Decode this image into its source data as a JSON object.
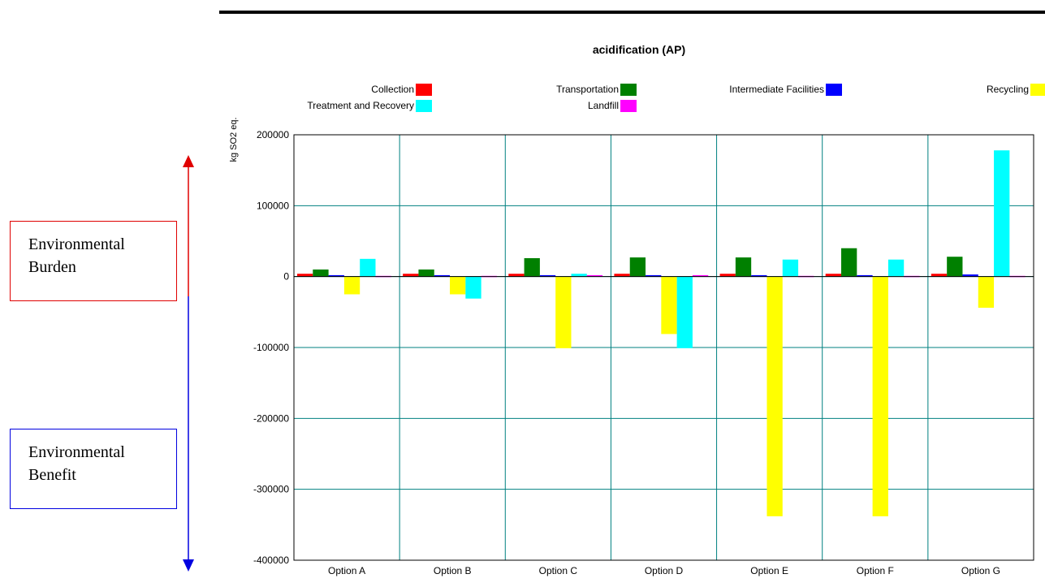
{
  "chart_data": {
    "type": "bar",
    "title": "acidification (AP)",
    "ylabel": "kg SO2 eq.",
    "xlabel": "",
    "ylim": [
      -400000,
      200000
    ],
    "yticks": [
      200000,
      100000,
      0,
      -100000,
      -200000,
      -300000,
      -400000
    ],
    "grid": true,
    "legend_position": "top",
    "categories": [
      "Option A",
      "Option B",
      "Option C",
      "Option D",
      "Option E",
      "Option F",
      "Option G"
    ],
    "series": [
      {
        "name": "Collection",
        "color": "#ff0000",
        "values": [
          4000,
          4000,
          4000,
          4000,
          4000,
          4000,
          4000
        ]
      },
      {
        "name": "Transportation",
        "color": "#008000",
        "values": [
          10000,
          10000,
          26000,
          27000,
          27000,
          40000,
          28000
        ]
      },
      {
        "name": "Intermediate Facilities",
        "color": "#0000ff",
        "values": [
          2000,
          2000,
          2000,
          2000,
          2000,
          2000,
          3000
        ]
      },
      {
        "name": "Recycling",
        "color": "#ffff00",
        "values": [
          -25000,
          -25000,
          -101000,
          -81000,
          -338000,
          -338000,
          -44000
        ]
      },
      {
        "name": "Treatment and Recovery",
        "color": "#00ffff",
        "values": [
          25000,
          -31000,
          4000,
          -101000,
          24000,
          24000,
          178000
        ]
      },
      {
        "name": "Landfill",
        "color": "#ff00ff",
        "values": [
          1000,
          1000,
          2000,
          2000,
          1000,
          1000,
          1000
        ]
      }
    ]
  },
  "annotations": {
    "burden_label": [
      "Environmental",
      "Burden"
    ],
    "benefit_label": [
      "Environmental",
      "Benefit"
    ],
    "burden_color": "#e00000",
    "benefit_color": "#0000e0"
  }
}
